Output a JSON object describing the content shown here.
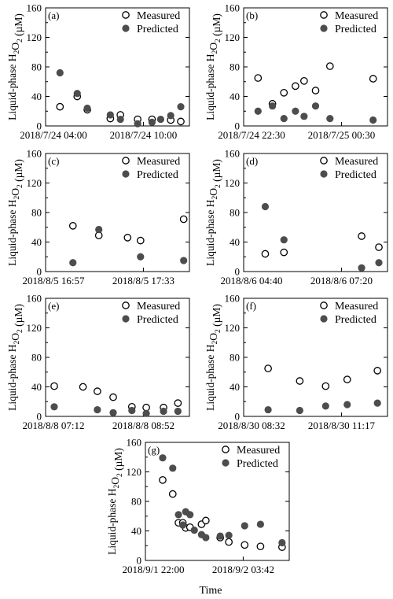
{
  "figure": {
    "ylabel_main": "Liquid-phase H",
    "ylabel_sub": "2",
    "ylabel_mid": "O",
    "ylabel_sub2": "2",
    "ylabel_unit": " (µM)",
    "xlabel": "Time",
    "colors": {
      "measured": "#ffffff",
      "measured_edge": "#000000",
      "predicted": "#4d4d4d"
    }
  },
  "chart_data": [
    {
      "type": "scatter",
      "panel": "(a)",
      "ylim": [
        0,
        160
      ],
      "yticks": [
        0,
        40,
        80,
        120,
        160
      ],
      "xlim": [
        0,
        1
      ],
      "xtick_labels": [
        {
          "x": 0.0,
          "label": "2018/7/24 04:00"
        },
        {
          "x": 0.68,
          "label": "2018/7/24 10:00"
        }
      ],
      "legend": [
        "Measured",
        "Predicted"
      ],
      "series": [
        {
          "name": "Measured",
          "x": [
            0.1,
            0.22,
            0.29,
            0.45,
            0.52,
            0.64,
            0.74,
            0.87,
            0.94
          ],
          "y": [
            26,
            40,
            22,
            10,
            15,
            9,
            9,
            8,
            6
          ]
        },
        {
          "name": "Predicted",
          "x": [
            0.1,
            0.22,
            0.29,
            0.45,
            0.52,
            0.64,
            0.74,
            0.8,
            0.87,
            0.94
          ],
          "y": [
            72,
            44,
            24,
            15,
            9,
            3,
            5,
            9,
            14,
            26
          ]
        }
      ]
    },
    {
      "type": "scatter",
      "panel": "(b)",
      "ylim": [
        0,
        160
      ],
      "yticks": [
        0,
        40,
        80,
        120,
        160
      ],
      "xlim": [
        0,
        1
      ],
      "xtick_labels": [
        {
          "x": 0.0,
          "label": "2018/7/24 22:30"
        },
        {
          "x": 0.68,
          "label": "2018/7/25 00:30"
        }
      ],
      "legend": [
        "Measured",
        "Predicted"
      ],
      "series": [
        {
          "name": "Measured",
          "x": [
            0.1,
            0.2,
            0.28,
            0.36,
            0.42,
            0.5,
            0.6,
            0.9
          ],
          "y": [
            65,
            30,
            45,
            54,
            61,
            48,
            81,
            64
          ]
        },
        {
          "name": "Predicted",
          "x": [
            0.1,
            0.2,
            0.28,
            0.36,
            0.42,
            0.5,
            0.6,
            0.9
          ],
          "y": [
            20,
            27,
            10,
            20,
            13,
            27,
            10,
            8
          ]
        }
      ]
    },
    {
      "type": "scatter",
      "panel": "(c)",
      "ylim": [
        0,
        160
      ],
      "yticks": [
        0,
        40,
        80,
        120,
        160
      ],
      "xlim": [
        0,
        1
      ],
      "xtick_labels": [
        {
          "x": 0.0,
          "label": "2018/8/5 16:57"
        },
        {
          "x": 0.68,
          "label": "2018/8/5 17:33"
        }
      ],
      "legend": [
        "Measured",
        "Predicted"
      ],
      "series": [
        {
          "name": "Measured",
          "x": [
            0.19,
            0.37,
            0.57,
            0.66,
            0.96
          ],
          "y": [
            62,
            49,
            46,
            42,
            71
          ]
        },
        {
          "name": "Predicted",
          "x": [
            0.19,
            0.37,
            0.66,
            0.96
          ],
          "y": [
            12,
            57,
            20,
            15
          ]
        }
      ]
    },
    {
      "type": "scatter",
      "panel": "(d)",
      "ylim": [
        0,
        160
      ],
      "yticks": [
        0,
        40,
        80,
        120,
        160
      ],
      "xlim": [
        0,
        1
      ],
      "xtick_labels": [
        {
          "x": 0.0,
          "label": "2018/8/6 04:40"
        },
        {
          "x": 0.68,
          "label": "2018/8/6 07:20"
        }
      ],
      "legend": [
        "Measured",
        "Predicted"
      ],
      "series": [
        {
          "name": "Measured",
          "x": [
            0.15,
            0.28,
            0.82,
            0.94
          ],
          "y": [
            24,
            26,
            48,
            33
          ]
        },
        {
          "name": "Predicted",
          "x": [
            0.15,
            0.28,
            0.82,
            0.94
          ],
          "y": [
            88,
            43,
            5,
            12
          ]
        }
      ]
    },
    {
      "type": "scatter",
      "panel": "(e)",
      "ylim": [
        0,
        160
      ],
      "yticks": [
        0,
        40,
        80,
        120,
        160
      ],
      "xlim": [
        0,
        1
      ],
      "xtick_labels": [
        {
          "x": 0.0,
          "label": "2018/8/8 07:12"
        },
        {
          "x": 0.68,
          "label": "2018/8/8 08:52"
        }
      ],
      "legend": [
        "Measured",
        "Predicted"
      ],
      "series": [
        {
          "name": "Measured",
          "x": [
            0.06,
            0.26,
            0.36,
            0.47,
            0.6,
            0.7,
            0.82,
            0.92
          ],
          "y": [
            41,
            40,
            34,
            26,
            13,
            12,
            12,
            18
          ]
        },
        {
          "name": "Predicted",
          "x": [
            0.06,
            0.36,
            0.47,
            0.6,
            0.7,
            0.82,
            0.92
          ],
          "y": [
            13,
            9,
            5,
            8,
            4,
            7,
            7
          ]
        }
      ]
    },
    {
      "type": "scatter",
      "panel": "(f)",
      "ylim": [
        0,
        160
      ],
      "yticks": [
        0,
        40,
        80,
        120,
        160
      ],
      "xlim": [
        0,
        1
      ],
      "xtick_labels": [
        {
          "x": 0.0,
          "label": "2018/8/30 08:32"
        },
        {
          "x": 0.68,
          "label": "2018/8/30 11:17"
        }
      ],
      "legend": [
        "Measured",
        "Predicted"
      ],
      "series": [
        {
          "name": "Measured",
          "x": [
            0.17,
            0.39,
            0.57,
            0.72,
            0.93
          ],
          "y": [
            65,
            48,
            41,
            50,
            62
          ]
        },
        {
          "name": "Predicted",
          "x": [
            0.17,
            0.39,
            0.57,
            0.72,
            0.93
          ],
          "y": [
            9,
            8,
            14,
            16,
            18
          ]
        }
      ]
    },
    {
      "type": "scatter",
      "panel": "(g)",
      "ylim": [
        0,
        160
      ],
      "yticks": [
        0,
        40,
        80,
        120,
        160
      ],
      "xlim": [
        0,
        1
      ],
      "xtick_labels": [
        {
          "x": 0.0,
          "label": "2018/9/1 22:00"
        },
        {
          "x": 0.68,
          "label": "2018/9/2 03:42"
        }
      ],
      "legend": [
        "Measured",
        "Predicted"
      ],
      "series": [
        {
          "name": "Measured",
          "x": [
            0.12,
            0.19,
            0.23,
            0.26,
            0.28,
            0.31,
            0.39,
            0.42,
            0.52,
            0.58,
            0.69,
            0.8,
            0.95
          ],
          "y": [
            109,
            90,
            51,
            51,
            44,
            45,
            49,
            54,
            31,
            25,
            21,
            19,
            18
          ]
        },
        {
          "name": "Predicted",
          "x": [
            0.12,
            0.19,
            0.23,
            0.26,
            0.28,
            0.31,
            0.34,
            0.39,
            0.42,
            0.52,
            0.58,
            0.69,
            0.8,
            0.95
          ],
          "y": [
            139,
            125,
            62,
            48,
            66,
            62,
            41,
            35,
            31,
            33,
            34,
            47,
            49,
            24
          ]
        }
      ]
    }
  ]
}
